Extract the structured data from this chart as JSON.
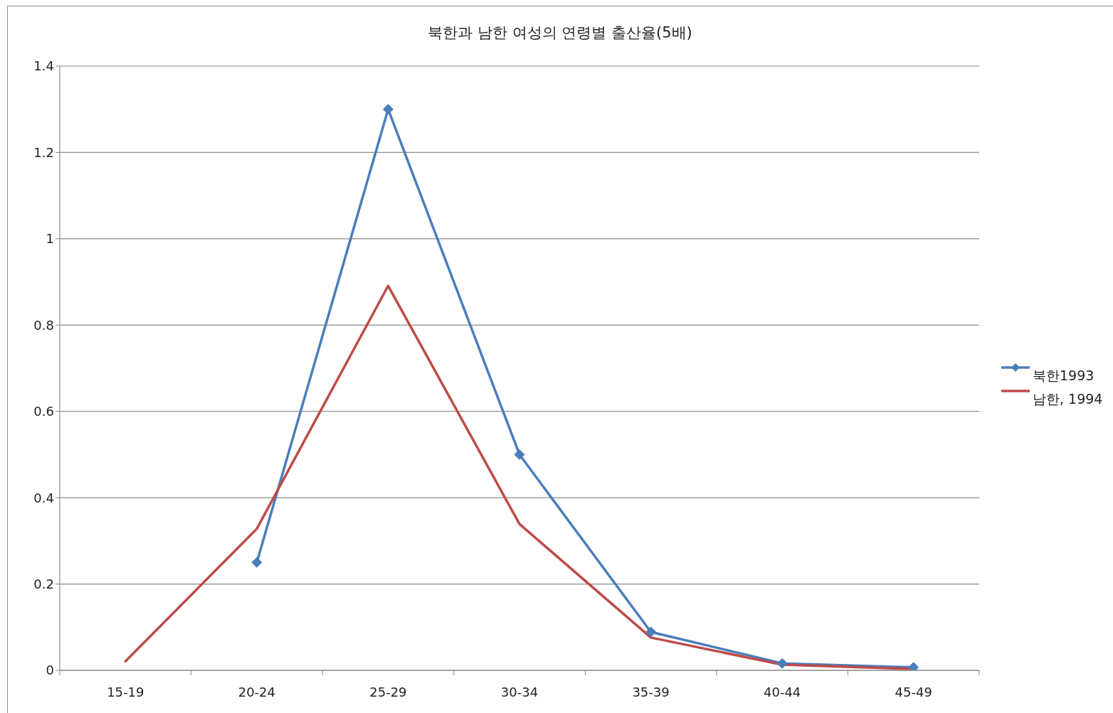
{
  "chart_data": {
    "type": "line",
    "title": "북한과 남한 여성의 연령별 출산율(5배)",
    "categories": [
      "15-19",
      "20-24",
      "25-29",
      "30-34",
      "35-39",
      "40-44",
      "45-49"
    ],
    "series": [
      {
        "name": "북한1993",
        "color": "#4a7ebb",
        "marker": "diamond",
        "values": [
          null,
          0.25,
          1.3,
          0.5,
          0.089,
          0.016,
          0.007
        ]
      },
      {
        "name": "남한, 1994",
        "color": "#be4b48",
        "values": [
          0.021,
          0.328,
          0.891,
          0.339,
          0.076,
          0.013,
          0.003
        ]
      }
    ],
    "ylim": [
      0,
      1.4
    ],
    "yticks": [
      0,
      0.2,
      0.4,
      0.6,
      0.8,
      1,
      1.2,
      1.4
    ],
    "grid": "y",
    "legend": "right"
  }
}
